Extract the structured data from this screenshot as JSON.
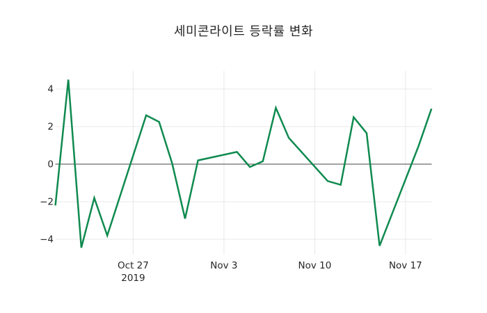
{
  "title": "세미콘라이트 등락률 변화",
  "chart_data": {
    "type": "line",
    "title": "세미콘라이트 등락률 변화",
    "series_name": "등락률",
    "x": [
      "Oct 21",
      "Oct 22",
      "Oct 23",
      "Oct 24",
      "Oct 25",
      "Oct 28",
      "Oct 29",
      "Oct 30",
      "Oct 31",
      "Nov 1",
      "Nov 4",
      "Nov 5",
      "Nov 6",
      "Nov 7",
      "Nov 8",
      "Nov 11",
      "Nov 12",
      "Nov 13",
      "Nov 14",
      "Nov 15",
      "Nov 18",
      "Nov 19"
    ],
    "day_offsets": [
      0,
      1,
      2,
      3,
      4,
      7,
      8,
      9,
      10,
      11,
      14,
      15,
      16,
      17,
      18,
      21,
      22,
      23,
      24,
      25,
      28,
      29
    ],
    "values": [
      -2.2,
      4.5,
      -4.45,
      -1.8,
      -3.8,
      2.6,
      2.25,
      0.05,
      -2.9,
      0.2,
      0.65,
      -0.15,
      0.15,
      3.0,
      1.4,
      -0.9,
      -1.1,
      2.5,
      1.65,
      -4.35,
      0.95,
      2.95
    ],
    "y_ticks": [
      {
        "label": "4",
        "value": 4
      },
      {
        "label": "2",
        "value": 2
      },
      {
        "label": "0",
        "value": 0
      },
      {
        "label": "−2",
        "value": -2
      },
      {
        "label": "−4",
        "value": -4
      }
    ],
    "x_ticks": [
      {
        "label": "Oct 27",
        "sublabel": "2019",
        "day_offset": 6
      },
      {
        "label": "Nov 3",
        "sublabel": "",
        "day_offset": 13
      },
      {
        "label": "Nov 10",
        "sublabel": "",
        "day_offset": 20
      },
      {
        "label": "Nov 17",
        "sublabel": "",
        "day_offset": 27
      }
    ],
    "ylim": [
      -4.85,
      5.0
    ],
    "grid": true,
    "legend_position": "none",
    "colors": {
      "line": "#0f8a4f",
      "grid": "#e8e8e8",
      "zero_line": "#444444",
      "text": "#262626",
      "background": "#ffffff"
    }
  }
}
